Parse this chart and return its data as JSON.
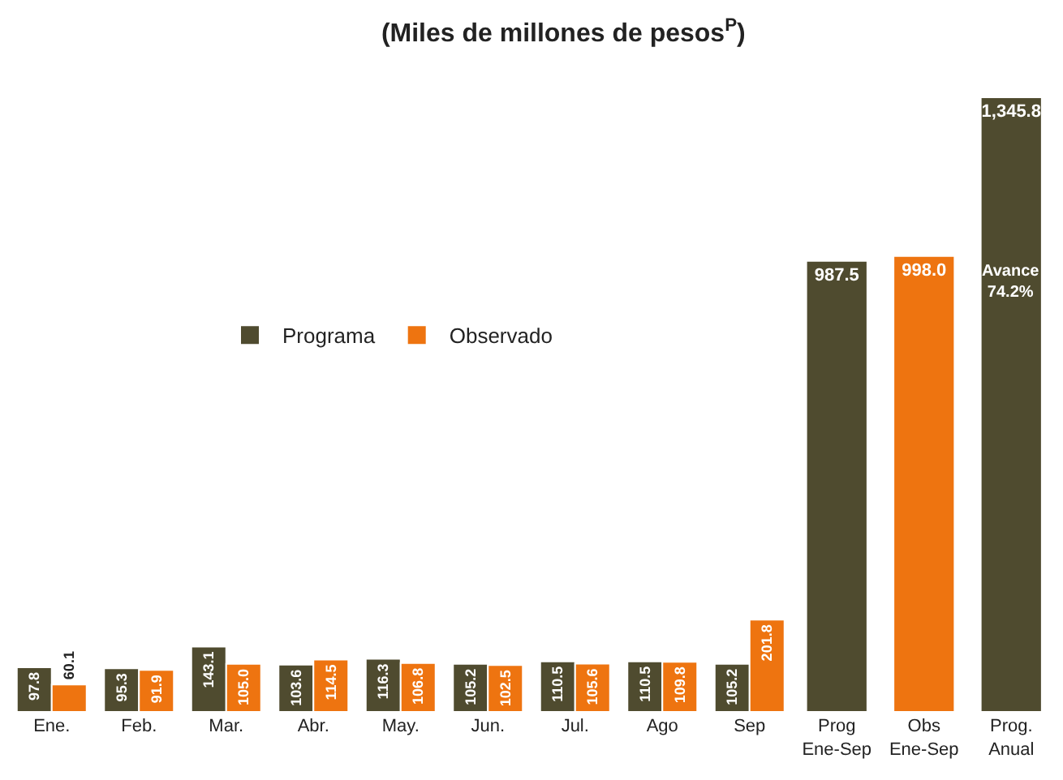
{
  "chart_data": {
    "type": "bar",
    "title": "(Miles de millones de pesos$^{P}$)",
    "categories": [
      "Ene.",
      "Feb.",
      "Mar.",
      "Abr.",
      "May.",
      "Jun.",
      "Jul.",
      "Ago",
      "Sep",
      "Prog Ene-Sep",
      "Obs Ene-Sep",
      "Prog. Anual"
    ],
    "series": [
      {
        "name": "Programa",
        "color": "#4f4b2f",
        "values": [
          97.8,
          95.3,
          143.1,
          103.6,
          116.3,
          105.2,
          110.5,
          110.5,
          105.2,
          987.5,
          null,
          1345.8
        ],
        "value_labels": [
          "97.8",
          "95.3",
          "143.1",
          "103.6",
          "116.3",
          "105.2",
          "110.5",
          "110.5",
          "105.2",
          "987.5",
          null,
          "1,345.8"
        ]
      },
      {
        "name": "Observado",
        "color": "#ee7410",
        "values": [
          60.1,
          91.9,
          105.0,
          114.5,
          106.8,
          102.5,
          105.6,
          109.8,
          201.8,
          null,
          998.0,
          null
        ],
        "value_labels": [
          "60.1",
          "91.9",
          "105.0",
          "114.5",
          "106.8",
          "102.5",
          "105.6",
          "109.8",
          "201.8",
          null,
          "998.0",
          null
        ]
      }
    ],
    "annotations": [
      "Avance 74.2%"
    ],
    "legend": "top left",
    "grid": false
  }
}
